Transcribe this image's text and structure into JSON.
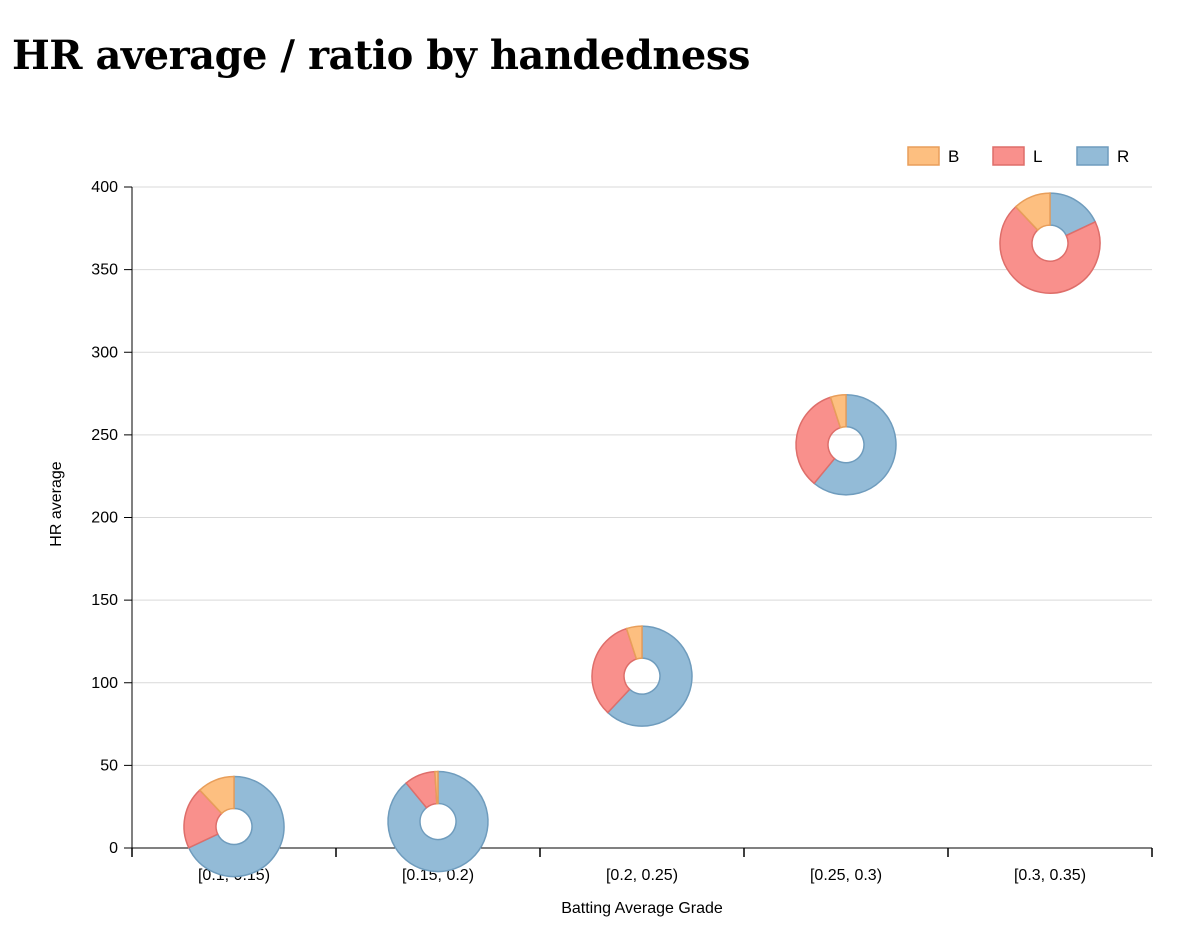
{
  "page_title": "HR average / ratio by handedness",
  "chart_data": {
    "type": "scatter",
    "subtype": "donut-markers",
    "title": "HR average / ratio by handedness",
    "xlabel": "Batting Average Grade",
    "ylabel": "HR average",
    "ylim": [
      0,
      400
    ],
    "yticks": [
      0,
      50,
      100,
      150,
      200,
      250,
      300,
      350,
      400
    ],
    "categories": [
      "[0.1, 0.15)",
      "[0.15, 0.2)",
      "[0.2, 0.25)",
      "[0.25, 0.3)",
      "[0.3, 0.35)"
    ],
    "grid": "horizontal",
    "legend_position": "top-right",
    "series": [
      {
        "name": "B",
        "color": "#fdbf80",
        "stroke": "#e89e5a",
        "values": [
          0.12,
          0.01,
          0.05,
          0.05,
          0.12
        ]
      },
      {
        "name": "L",
        "color": "#f9908c",
        "stroke": "#de6e6a",
        "values": [
          0.2,
          0.1,
          0.33,
          0.34,
          0.7
        ]
      },
      {
        "name": "R",
        "color": "#93bbd7",
        "stroke": "#6f9cbd",
        "values": [
          0.68,
          0.89,
          0.62,
          0.61,
          0.18
        ]
      }
    ],
    "hr_average": [
      13,
      16,
      104,
      244,
      366
    ]
  }
}
